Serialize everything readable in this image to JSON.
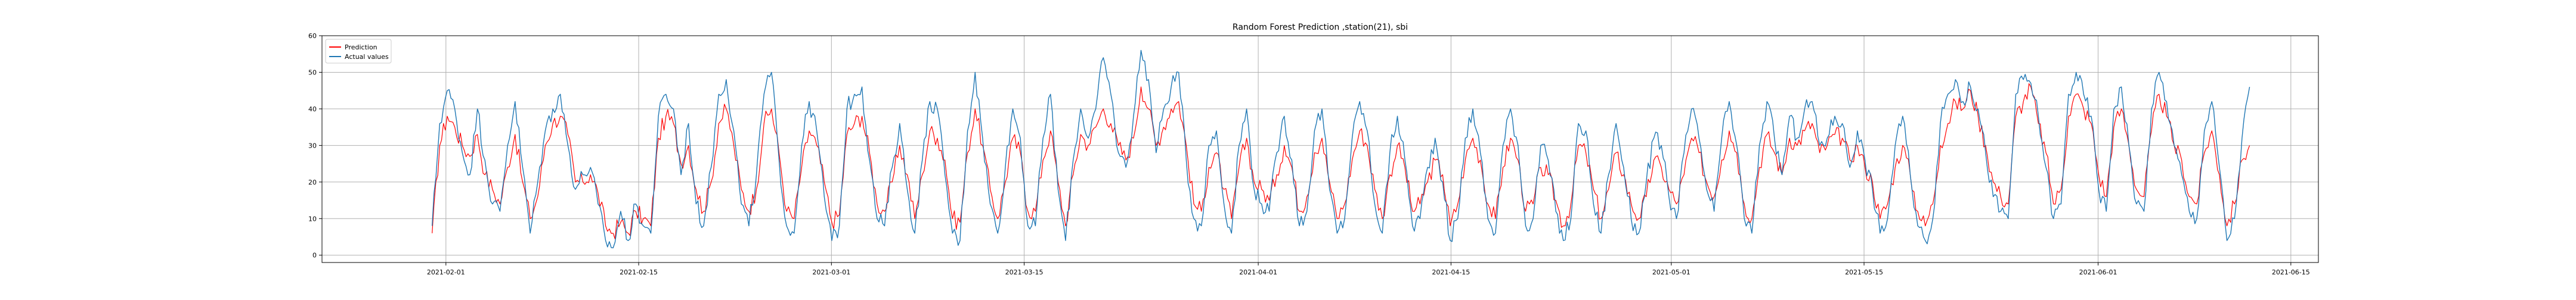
{
  "chart_data": {
    "type": "line",
    "title": "Random Forest Prediction ,station(21), sbi",
    "xlabel": "",
    "ylabel": "",
    "x_range": [
      "2021-01-23",
      "2021-06-17"
    ],
    "x_data_range": [
      "2021-01-31",
      "2021-06-12"
    ],
    "ylim": [
      -2,
      60
    ],
    "x_ticks": [
      "2021-02-01",
      "2021-02-15",
      "2021-03-01",
      "2021-03-15",
      "2021-04-01",
      "2021-04-15",
      "2021-05-01",
      "2021-05-15",
      "2021-06-01",
      "2021-06-15"
    ],
    "y_ticks": [
      0,
      10,
      20,
      30,
      40,
      50,
      60
    ],
    "grid": true,
    "legend_position": "top-left",
    "series": [
      {
        "name": "Prediction",
        "color": "#ff0000",
        "samples": [
          6,
          30,
          38,
          35,
          30,
          27,
          33,
          22,
          18,
          14,
          24,
          33,
          20,
          10,
          16,
          30,
          36,
          38,
          33,
          20,
          20,
          22,
          17,
          8,
          6,
          9,
          6,
          12,
          10,
          8,
          32,
          38,
          36,
          25,
          30,
          18,
          12,
          20,
          36,
          40,
          30,
          18,
          12,
          18,
          36,
          40,
          28,
          12,
          10,
          24,
          34,
          30,
          20,
          9,
          11,
          33,
          36,
          38,
          28,
          14,
          12,
          20,
          30,
          22,
          10,
          22,
          34,
          32,
          26,
          10,
          9,
          28,
          40,
          30,
          18,
          10,
          20,
          32,
          28,
          12,
          12,
          26,
          34,
          20,
          8,
          22,
          33,
          30,
          35,
          40,
          36,
          30,
          26,
          32,
          46,
          40,
          30,
          35,
          40,
          42,
          30,
          14,
          12,
          24,
          28,
          18,
          10,
          24,
          32,
          20,
          18,
          15,
          22,
          30,
          24,
          12,
          16,
          28,
          32,
          20,
          10,
          14,
          26,
          34,
          30,
          18,
          10,
          22,
          30,
          24,
          12,
          14,
          20,
          26,
          22,
          8,
          14,
          26,
          32,
          26,
          14,
          10,
          24,
          32,
          26,
          12,
          14,
          24,
          22,
          15,
          8,
          14,
          30,
          28,
          18,
          10,
          18,
          28,
          22,
          14,
          10,
          16,
          26,
          24,
          18,
          14,
          22,
          32,
          28,
          20,
          16,
          26,
          34,
          28,
          14,
          10,
          24,
          33,
          28,
          22,
          32,
          30,
          34,
          36,
          28,
          30,
          33,
          32,
          26,
          30,
          24,
          20,
          10,
          14,
          24,
          30,
          22,
          12,
          8,
          14,
          30,
          36,
          42,
          40,
          45,
          38,
          30,
          20,
          16,
          14,
          38,
          42,
          46,
          36,
          28,
          14,
          18,
          38,
          44,
          40,
          36,
          22,
          16,
          35,
          40,
          30,
          18,
          16,
          34,
          44,
          38,
          30,
          26,
          16,
          14,
          28,
          34,
          22,
          8,
          14,
          26,
          30
        ],
        "note": "resampled series estimated from the figure, evenly spaced over x_data_range"
      },
      {
        "name": "Actual values",
        "color": "#1f77b4",
        "samples": [
          8,
          36,
          45,
          40,
          28,
          22,
          40,
          26,
          14,
          12,
          30,
          42,
          24,
          6,
          20,
          34,
          40,
          44,
          30,
          18,
          22,
          24,
          14,
          4,
          2,
          12,
          4,
          14,
          8,
          6,
          38,
          44,
          40,
          22,
          36,
          14,
          8,
          24,
          44,
          48,
          34,
          14,
          8,
          22,
          44,
          50,
          26,
          8,
          6,
          30,
          42,
          34,
          16,
          4,
          8,
          40,
          44,
          46,
          26,
          10,
          8,
          24,
          36,
          18,
          6,
          26,
          42,
          40,
          22,
          6,
          4,
          34,
          50,
          32,
          14,
          6,
          24,
          40,
          32,
          8,
          8,
          32,
          44,
          18,
          4,
          26,
          40,
          32,
          40,
          54,
          44,
          28,
          24,
          38,
          56,
          48,
          28,
          40,
          46,
          50,
          26,
          10,
          8,
          30,
          34,
          14,
          6,
          30,
          40,
          18,
          14,
          12,
          28,
          38,
          26,
          8,
          12,
          34,
          40,
          18,
          6,
          10,
          32,
          42,
          34,
          14,
          6,
          28,
          38,
          26,
          8,
          10,
          24,
          32,
          20,
          4,
          10,
          32,
          40,
          28,
          10,
          6,
          30,
          40,
          30,
          8,
          10,
          30,
          26,
          12,
          4,
          10,
          36,
          34,
          14,
          6,
          22,
          36,
          24,
          10,
          6,
          20,
          32,
          30,
          16,
          10,
          28,
          40,
          32,
          18,
          12,
          32,
          42,
          30,
          10,
          6,
          30,
          42,
          32,
          22,
          38,
          32,
          40,
          42,
          30,
          32,
          38,
          36,
          24,
          34,
          26,
          18,
          6,
          10,
          30,
          38,
          22,
          8,
          4,
          10,
          36,
          44,
          48,
          42,
          46,
          40,
          28,
          16,
          12,
          10,
          44,
          48,
          47,
          38,
          24,
          10,
          14,
          44,
          50,
          44,
          38,
          18,
          12,
          40,
          46,
          30,
          14,
          12,
          40,
          50,
          42,
          30,
          22,
          12,
          10,
          34,
          42,
          24,
          4,
          10,
          32,
          46
        ],
        "note": "resampled series estimated from the figure, evenly spaced over x_data_range"
      }
    ]
  }
}
